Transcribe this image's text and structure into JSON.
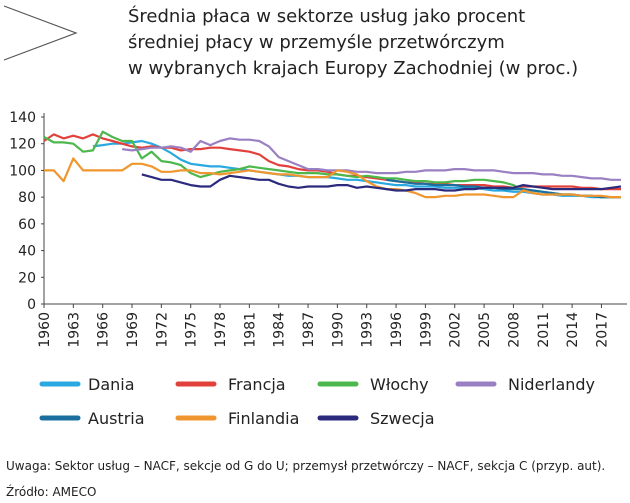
{
  "chart_data": {
    "type": "line",
    "title": [
      "Średnia płaca w sektorze usług  jako procent",
      "średniej płacy w przemyśle przetwórczym",
      "w wybranych krajach Europy Zachodniej (w proc.)"
    ],
    "notes": [
      "Uwaga: Sektor usług – NACF, sekcje od G do U; przemysł przetwórczy – NACF, sekcja C (przyp. aut).",
      "Źródło: AMECO"
    ],
    "x": [
      1960,
      1961,
      1962,
      1963,
      1964,
      1965,
      1966,
      1967,
      1968,
      1969,
      1970,
      1971,
      1972,
      1973,
      1974,
      1975,
      1976,
      1977,
      1978,
      1979,
      1980,
      1981,
      1982,
      1983,
      1984,
      1985,
      1986,
      1987,
      1988,
      1989,
      1990,
      1991,
      1992,
      1993,
      1994,
      1995,
      1996,
      1997,
      1998,
      1999,
      2000,
      2001,
      2002,
      2003,
      2004,
      2005,
      2006,
      2007,
      2008,
      2009,
      2010,
      2011,
      2012,
      2013,
      2014,
      2015,
      2016,
      2017,
      2018,
      2019
    ],
    "xlim": [
      1960,
      2019
    ],
    "xticks": [
      1960,
      1963,
      1966,
      1969,
      1972,
      1975,
      1978,
      1981,
      1984,
      1987,
      1990,
      1993,
      1996,
      1999,
      2002,
      2005,
      2008,
      2011,
      2014,
      2017
    ],
    "ylim": [
      0,
      140
    ],
    "yticks": [
      0,
      20,
      40,
      60,
      80,
      100,
      120,
      140
    ],
    "series": [
      {
        "name": "Dania",
        "color": "#2aa8e0",
        "values": [
          null,
          null,
          null,
          null,
          null,
          118,
          119,
          120,
          120,
          121,
          122,
          120,
          117,
          113,
          108,
          105,
          104,
          103,
          103,
          102,
          101,
          100,
          99,
          98,
          97,
          96,
          96,
          95,
          95,
          95,
          94,
          93,
          93,
          92,
          91,
          90,
          89,
          89,
          88,
          88,
          88,
          87,
          87,
          87,
          87,
          86,
          85,
          85,
          84,
          84,
          83,
          82,
          82,
          81,
          81,
          81,
          80,
          80,
          80,
          80
        ]
      },
      {
        "name": "Francja",
        "color": "#e2403a",
        "values": [
          122,
          127,
          124,
          126,
          124,
          127,
          124,
          122,
          120,
          118,
          117,
          118,
          117,
          117,
          115,
          116,
          116,
          117,
          117,
          116,
          115,
          114,
          112,
          107,
          104,
          103,
          101,
          100,
          100,
          99,
          97,
          96,
          96,
          95,
          94,
          93,
          92,
          91,
          91,
          90,
          90,
          90,
          89,
          89,
          89,
          89,
          88,
          88,
          87,
          88,
          88,
          88,
          88,
          88,
          88,
          87,
          87,
          86,
          86,
          86
        ]
      },
      {
        "name": "Włochy",
        "color": "#4cb84b",
        "values": [
          125,
          121,
          121,
          120,
          114,
          115,
          129,
          125,
          122,
          122,
          109,
          114,
          107,
          106,
          104,
          98,
          95,
          97,
          99,
          100,
          101,
          103,
          102,
          101,
          100,
          99,
          98,
          98,
          98,
          97,
          97,
          96,
          95,
          96,
          95,
          94,
          94,
          93,
          92,
          92,
          91,
          91,
          92,
          92,
          93,
          93,
          92,
          91,
          89,
          85,
          85,
          84,
          83,
          82,
          82,
          81,
          81,
          80,
          80,
          80
        ]
      },
      {
        "name": "Niderlandy",
        "color": "#9a80c2",
        "values": [
          null,
          null,
          null,
          null,
          null,
          null,
          null,
          null,
          116,
          115,
          116,
          117,
          117,
          118,
          117,
          114,
          122,
          119,
          122,
          124,
          123,
          123,
          122,
          118,
          110,
          107,
          104,
          101,
          101,
          100,
          100,
          100,
          99,
          99,
          98,
          98,
          98,
          99,
          99,
          100,
          100,
          100,
          101,
          101,
          100,
          100,
          100,
          99,
          98,
          98,
          98,
          97,
          97,
          96,
          96,
          95,
          94,
          94,
          93,
          93
        ]
      },
      {
        "name": "Austria",
        "color": "#1b6f9f",
        "values": [
          null,
          null,
          null,
          null,
          null,
          null,
          null,
          null,
          null,
          null,
          null,
          null,
          null,
          null,
          null,
          null,
          null,
          null,
          null,
          null,
          null,
          null,
          null,
          null,
          null,
          null,
          null,
          null,
          null,
          null,
          null,
          null,
          null,
          null,
          null,
          93,
          92,
          91,
          90,
          90,
          89,
          89,
          89,
          88,
          88,
          87,
          87,
          86,
          86,
          86,
          85,
          84,
          83,
          82,
          82,
          81,
          81,
          80,
          80,
          80
        ]
      },
      {
        "name": "Finlandia",
        "color": "#f0962e",
        "values": [
          100,
          100,
          92,
          109,
          100,
          100,
          100,
          100,
          100,
          105,
          105,
          103,
          99,
          99,
          100,
          100,
          98,
          98,
          97,
          98,
          99,
          100,
          99,
          98,
          97,
          97,
          96,
          95,
          95,
          95,
          100,
          99,
          97,
          92,
          88,
          86,
          86,
          85,
          83,
          80,
          80,
          81,
          81,
          82,
          82,
          82,
          81,
          80,
          80,
          85,
          83,
          82,
          82,
          82,
          82,
          81,
          81,
          81,
          80,
          80
        ]
      },
      {
        "name": "Szwecja",
        "color": "#2b2a7c",
        "values": [
          null,
          null,
          null,
          null,
          null,
          null,
          null,
          null,
          null,
          null,
          97,
          95,
          93,
          93,
          91,
          89,
          88,
          88,
          93,
          96,
          95,
          94,
          93,
          93,
          90,
          88,
          87,
          88,
          88,
          88,
          89,
          89,
          87,
          88,
          87,
          86,
          85,
          85,
          86,
          86,
          86,
          85,
          85,
          86,
          86,
          87,
          87,
          87,
          87,
          89,
          88,
          87,
          86,
          86,
          86,
          86,
          86,
          86,
          87,
          88
        ]
      }
    ]
  }
}
